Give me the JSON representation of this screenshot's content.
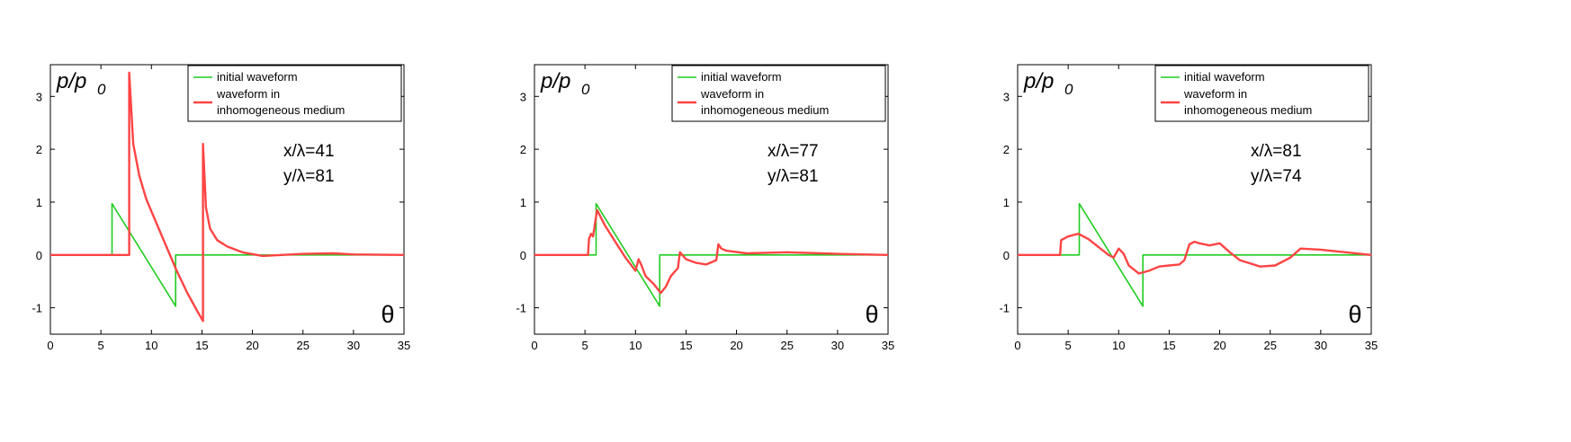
{
  "figure": {
    "panels": [
      {
        "ylabel_main": "p/p",
        "ylabel_sub": "0",
        "legend": [
          "initial waveform",
          "waveform in",
          "inhomogeneous medium"
        ],
        "annot": [
          "x/λ=41",
          "y/λ=81"
        ],
        "xlabel": "θ"
      },
      {
        "ylabel_main": "p/p",
        "ylabel_sub": "0",
        "legend": [
          "initial waveform",
          "waveform in",
          "inhomogeneous medium"
        ],
        "annot": [
          "x/λ=77",
          "y/λ=81"
        ],
        "xlabel": "θ"
      },
      {
        "ylabel_main": "p/p",
        "ylabel_sub": "0",
        "legend": [
          "initial waveform",
          "waveform in",
          "inhomogeneous medium"
        ],
        "annot": [
          "x/λ=81",
          "y/λ=74"
        ],
        "xlabel": "θ"
      }
    ]
  },
  "chart_data": [
    {
      "type": "line",
      "xlim": [
        0,
        35
      ],
      "ylim": [
        -1.5,
        3.6
      ],
      "xticks": [
        0,
        5,
        10,
        15,
        20,
        25,
        30,
        35
      ],
      "yticks": [
        -1,
        0,
        1,
        2,
        3
      ],
      "xlabel": "θ",
      "ylabel": "p/p0",
      "legend_position": "top-right",
      "colors": {
        "initial": "#22cc22",
        "medium": "#ff4444"
      },
      "series": [
        {
          "name": "initial waveform",
          "x": [
            0,
            6.1,
            6.1,
            12.4,
            12.4,
            35
          ],
          "y": [
            0,
            0,
            0.97,
            -0.97,
            0,
            0
          ]
        },
        {
          "name": "waveform in inhomogeneous medium",
          "x": [
            0,
            7.8,
            7.8,
            8.2,
            8.8,
            9.5,
            10.5,
            11.5,
            12.5,
            13.5,
            14.5,
            15.1,
            15.1,
            15.4,
            15.8,
            16.5,
            17.5,
            19,
            21,
            25,
            28,
            30,
            35
          ],
          "y": [
            0,
            0,
            3.45,
            2.1,
            1.5,
            1.05,
            0.6,
            0.15,
            -0.3,
            -0.7,
            -1.05,
            -1.25,
            2.1,
            0.9,
            0.5,
            0.28,
            0.16,
            0.05,
            -0.02,
            0.02,
            0.03,
            0.01,
            0
          ]
        }
      ]
    },
    {
      "type": "line",
      "xlim": [
        0,
        35
      ],
      "ylim": [
        -1.5,
        3.6
      ],
      "xticks": [
        0,
        5,
        10,
        15,
        20,
        25,
        30,
        35
      ],
      "yticks": [
        -1,
        0,
        1,
        2,
        3
      ],
      "xlabel": "θ",
      "ylabel": "p/p0",
      "legend_position": "top-right",
      "colors": {
        "initial": "#22cc22",
        "medium": "#ff4444"
      },
      "series": [
        {
          "name": "initial waveform",
          "x": [
            0,
            6.1,
            6.1,
            12.4,
            12.4,
            35
          ],
          "y": [
            0,
            0,
            0.97,
            -0.97,
            0,
            0
          ]
        },
        {
          "name": "waveform in inhomogeneous medium",
          "x": [
            0,
            5.3,
            5.4,
            5.6,
            5.8,
            6.2,
            7,
            8,
            9,
            10,
            10.3,
            10.6,
            11,
            11.8,
            12.5,
            13,
            13.5,
            14.2,
            14.4,
            15,
            16,
            17,
            18,
            18.2,
            18.5,
            19,
            21,
            25,
            30,
            35
          ],
          "y": [
            0,
            0,
            0.3,
            0.4,
            0.35,
            0.85,
            0.55,
            0.25,
            -0.05,
            -0.3,
            -0.08,
            -0.2,
            -0.4,
            -0.55,
            -0.72,
            -0.6,
            -0.4,
            -0.25,
            0.05,
            -0.08,
            -0.15,
            -0.18,
            -0.1,
            0.2,
            0.12,
            0.08,
            0.03,
            0.05,
            0.02,
            0
          ]
        }
      ]
    },
    {
      "type": "line",
      "xlim": [
        0,
        35
      ],
      "ylim": [
        -1.5,
        3.6
      ],
      "xticks": [
        0,
        5,
        10,
        15,
        20,
        25,
        30,
        35
      ],
      "yticks": [
        -1,
        0,
        1,
        2,
        3
      ],
      "xlabel": "θ",
      "ylabel": "p/p0",
      "legend_position": "top-right",
      "colors": {
        "initial": "#22cc22",
        "medium": "#ff4444"
      },
      "series": [
        {
          "name": "initial waveform",
          "x": [
            0,
            6.1,
            6.1,
            12.4,
            12.4,
            35
          ],
          "y": [
            0,
            0,
            0.97,
            -0.97,
            0,
            0
          ]
        },
        {
          "name": "waveform in inhomogeneous medium",
          "x": [
            0,
            4.2,
            4.3,
            5,
            6,
            7,
            8,
            9,
            9.5,
            10,
            10.5,
            11,
            12,
            13,
            14,
            15,
            16,
            16.5,
            17,
            17.5,
            18,
            19,
            20,
            21,
            22,
            24,
            25.5,
            27,
            28,
            30,
            33,
            35
          ],
          "y": [
            0,
            0,
            0.28,
            0.35,
            0.4,
            0.3,
            0.15,
            0.0,
            -0.05,
            0.12,
            0.02,
            -0.2,
            -0.35,
            -0.3,
            -0.22,
            -0.2,
            -0.18,
            -0.1,
            0.2,
            0.25,
            0.22,
            0.18,
            0.22,
            0.05,
            -0.1,
            -0.22,
            -0.2,
            -0.05,
            0.12,
            0.1,
            0.04,
            0
          ]
        }
      ]
    }
  ]
}
